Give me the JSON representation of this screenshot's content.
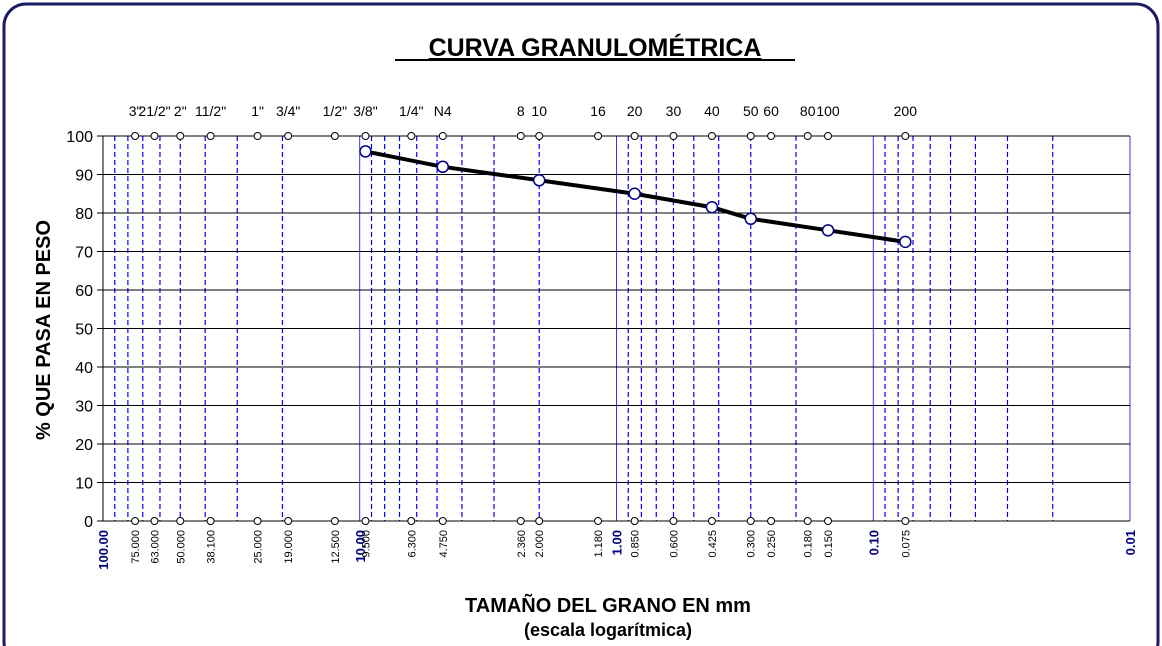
{
  "chart_data": {
    "type": "line",
    "title": "CURVA GRANULOMÉTRICA",
    "y_label": "% QUE PASA EN PESO",
    "x_label": "TAMAÑO DEL GRANO EN mm",
    "x_sublabel": "(escala logarítmica)",
    "xscale": "log",
    "xlim": [
      100,
      0.01
    ],
    "xticks": [
      {
        "value": 100,
        "label": "100.00"
      },
      {
        "value": 10,
        "label": "10.00"
      },
      {
        "value": 1,
        "label": "1.00"
      },
      {
        "value": 0.1,
        "label": "0.10"
      },
      {
        "value": 0.01,
        "label": "0.01"
      }
    ],
    "xminor_ticks": [
      90,
      80,
      70,
      60,
      50,
      40,
      30,
      20,
      9,
      8,
      7,
      6,
      5,
      4,
      3,
      2,
      0.9,
      0.8,
      0.7,
      0.6,
      0.5,
      0.4,
      0.3,
      0.2,
      0.09,
      0.08,
      0.07,
      0.06,
      0.05,
      0.04,
      0.03,
      0.02
    ],
    "ylim": [
      0,
      100
    ],
    "yticks": [
      0,
      10,
      20,
      30,
      40,
      50,
      60,
      70,
      80,
      90,
      100
    ],
    "grid": true,
    "sieve_names": [
      "3\"",
      "21/2\"",
      "2\"",
      "11/2\"",
      "1\"",
      "3/4\"",
      "1/2\"",
      "3/8\"",
      "1/4\"",
      "N4",
      "8",
      "10",
      "16",
      "20",
      "30",
      "40",
      "50",
      "60",
      "80",
      "100",
      "200"
    ],
    "sieve_sizes": [
      {
        "value": 75,
        "label": "75.000"
      },
      {
        "value": 63,
        "label": "63.000"
      },
      {
        "value": 50,
        "label": "50.000"
      },
      {
        "value": 38.1,
        "label": "38.100"
      },
      {
        "value": 25,
        "label": "25.000"
      },
      {
        "value": 19,
        "label": "19.000"
      },
      {
        "value": 12.5,
        "label": "12.500"
      },
      {
        "value": 9.5,
        "label": "9.500"
      },
      {
        "value": 6.3,
        "label": "6.300"
      },
      {
        "value": 4.75,
        "label": "4.750"
      },
      {
        "value": 2.36,
        "label": "2.360"
      },
      {
        "value": 2,
        "label": "2.000"
      },
      {
        "value": 1.18,
        "label": "1.180"
      },
      {
        "value": 0.85,
        "label": "0.850"
      },
      {
        "value": 0.6,
        "label": "0.600"
      },
      {
        "value": 0.425,
        "label": "0.425"
      },
      {
        "value": 0.3,
        "label": "0.300"
      },
      {
        "value": 0.25,
        "label": "0.250"
      },
      {
        "value": 0.18,
        "label": "0.180"
      },
      {
        "value": 0.15,
        "label": "0.150"
      },
      {
        "value": 0.075,
        "label": "0.075"
      }
    ],
    "x": [
      9.5,
      4.75,
      2,
      0.85,
      0.425,
      0.3,
      0.15,
      0.075
    ],
    "values": [
      96,
      92,
      88.5,
      85,
      81.5,
      78.5,
      75.5,
      72.5
    ],
    "color": "#000000",
    "marker_color": "#000080",
    "grid_color": "#0000ff"
  }
}
